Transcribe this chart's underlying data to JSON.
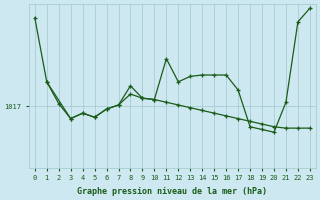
{
  "xlabel": "Graphe pression niveau de la mer (hPa)",
  "background_color": "#cde8f0",
  "plot_bg_color": "#cde8f0",
  "grid_color": "#a0c8cc",
  "line_color": "#1a5c1a",
  "marker_color": "#1a5c1a",
  "text_color": "#1a5c1a",
  "ylim_min": 1012.5,
  "ylim_max": 1024.5,
  "xlim_min": -0.5,
  "xlim_max": 23.5,
  "ytick_value": 1017,
  "series1_x": [
    0,
    1,
    3,
    4,
    5,
    6,
    7,
    8,
    9,
    10,
    11,
    12,
    13,
    14,
    15,
    16,
    17,
    18,
    19,
    20,
    21,
    22,
    23
  ],
  "series1_y": [
    1023.5,
    1018.8,
    1016.1,
    1016.5,
    1016.2,
    1016.8,
    1017.1,
    1018.5,
    1017.6,
    1017.5,
    1020.5,
    1018.8,
    1019.2,
    1019.3,
    1019.3,
    1019.3,
    1018.2,
    1015.5,
    1015.3,
    1015.1,
    1017.3,
    1023.2,
    1024.2
  ],
  "series2_x": [
    1,
    2,
    3,
    4,
    5,
    6,
    7,
    8,
    9,
    10,
    11,
    12,
    13,
    14,
    15,
    16,
    17,
    18,
    19,
    20,
    21,
    22,
    23
  ],
  "series2_y": [
    1018.8,
    1017.2,
    1016.1,
    1016.5,
    1016.2,
    1016.8,
    1017.1,
    1017.9,
    1017.6,
    1017.5,
    1017.3,
    1017.1,
    1016.9,
    1016.7,
    1016.5,
    1016.3,
    1016.1,
    1015.9,
    1015.7,
    1015.5,
    1015.4,
    1015.4,
    1015.4
  ],
  "xtick_labels": [
    "0",
    "1",
    "2",
    "3",
    "4",
    "5",
    "6",
    "7",
    "8",
    "9",
    "10",
    "11",
    "12",
    "13",
    "14",
    "15",
    "16",
    "17",
    "18",
    "19",
    "20",
    "21",
    "22",
    "23"
  ]
}
